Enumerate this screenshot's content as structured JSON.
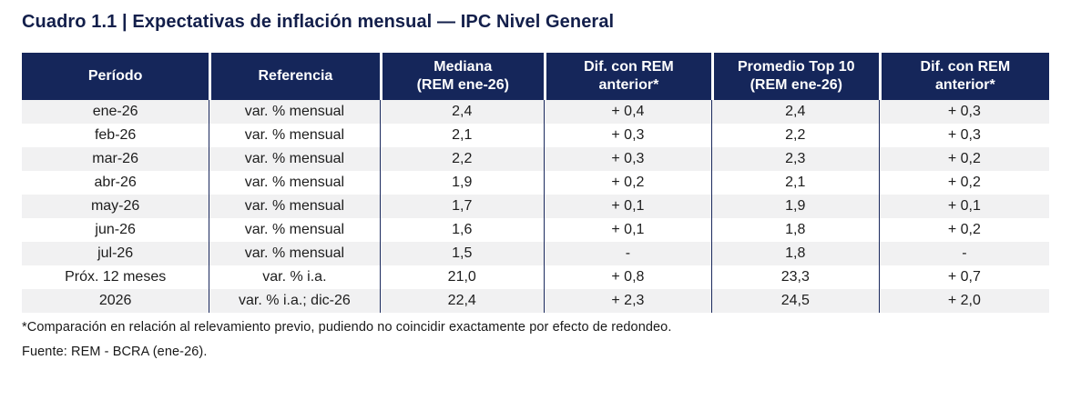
{
  "page": {
    "title": "Cuadro 1.1 | Expectativas de inflación mensual — IPC Nivel General"
  },
  "table": {
    "columns": [
      "Período",
      "Referencia",
      "Mediana\n(REM ene-26)",
      "Dif. con REM\nanterior*",
      "Promedio Top 10\n(REM ene-26)",
      "Dif. con REM\nanterior*"
    ],
    "rows": [
      [
        "ene-26",
        "var. % mensual",
        "2,4",
        "+ 0,4",
        "2,4",
        "+ 0,3"
      ],
      [
        "feb-26",
        "var. % mensual",
        "2,1",
        "+ 0,3",
        "2,2",
        "+ 0,3"
      ],
      [
        "mar-26",
        "var. % mensual",
        "2,2",
        "+ 0,3",
        "2,3",
        "+ 0,2"
      ],
      [
        "abr-26",
        "var. % mensual",
        "1,9",
        "+ 0,2",
        "2,1",
        "+ 0,2"
      ],
      [
        "may-26",
        "var. % mensual",
        "1,7",
        "+ 0,1",
        "1,9",
        "+ 0,1"
      ],
      [
        "jun-26",
        "var. % mensual",
        "1,6",
        "+ 0,1",
        "1,8",
        "+ 0,2"
      ],
      [
        "jul-26",
        "var. % mensual",
        "1,5",
        "-",
        "1,8",
        "-"
      ],
      [
        "Próx. 12 meses",
        "var. % i.a.",
        "21,0",
        "+ 0,8",
        "23,3",
        "+ 0,7"
      ],
      [
        "2026",
        "var. % i.a.; dic-26",
        "22,4",
        "+ 2,3",
        "24,5",
        "+ 2,0"
      ]
    ]
  },
  "footnotes": {
    "comparison_note": "*Comparación en relación al relevamiento previo, pudiendo no coincidir exactamente por efecto de redondeo.",
    "source": "Fuente: REM - BCRA (ene-26)."
  },
  "colors": {
    "header_bg": "#15265A",
    "header_text": "#FFFFFF",
    "title_text": "#131F4B",
    "row_stripe": "#F1F1F2",
    "column_divider": "#1B2A5E",
    "body_text": "#1D1D1D"
  }
}
